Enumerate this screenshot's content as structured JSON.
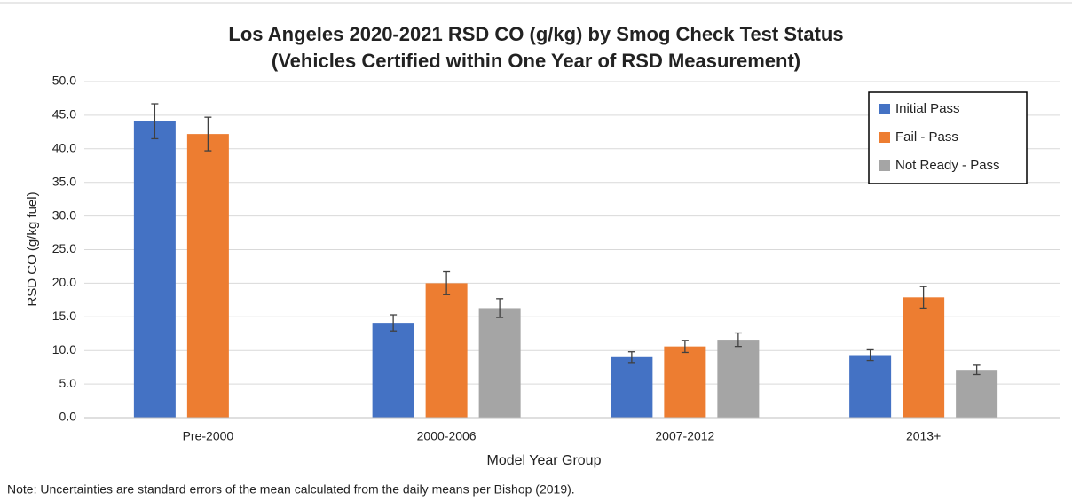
{
  "chart_data": {
    "type": "bar",
    "title": [
      "Los Angeles 2020-2021 RSD CO (g/kg) by Smog Check Test Status",
      "(Vehicles Certified within One Year of RSD Measurement)"
    ],
    "y_label": "RSD CO (g/kg fuel)",
    "x_label": "Model Year Group",
    "note": "Note: Uncertainties are standard errors of the mean calculated from the daily means per Bishop (2019).",
    "categories": [
      "Pre-2000",
      "2000-2006",
      "2007-2012",
      "2013+"
    ],
    "series": [
      {
        "name": "Initial Pass",
        "color": "#4472c4",
        "values": [
          44.1,
          14.1,
          9.0,
          9.3
        ],
        "errors": [
          2.6,
          1.2,
          0.8,
          0.8
        ]
      },
      {
        "name": "Fail - Pass",
        "color": "#ed7d31",
        "values": [
          42.2,
          20.0,
          10.6,
          17.9
        ],
        "errors": [
          2.5,
          1.7,
          0.9,
          1.6
        ]
      },
      {
        "name": "Not Ready - Pass",
        "color": "#a5a5a5",
        "values": [
          null,
          16.3,
          11.6,
          7.1
        ],
        "errors": [
          null,
          1.4,
          1.0,
          0.7
        ]
      }
    ],
    "ylim": [
      0,
      50
    ],
    "yticks": [
      {
        "value": 0,
        "label": "0.0"
      },
      {
        "value": 5,
        "label": "5.0"
      },
      {
        "value": 10,
        "label": "10.0"
      },
      {
        "value": 15,
        "label": "15.0"
      },
      {
        "value": 20,
        "label": "20.0"
      },
      {
        "value": 25,
        "label": "25.0"
      },
      {
        "value": 30,
        "label": "30.0"
      },
      {
        "value": 35,
        "label": "35.0"
      },
      {
        "value": 40,
        "label": "40.0"
      },
      {
        "value": 45,
        "label": "45.0"
      },
      {
        "value": 50,
        "label": "50.0"
      }
    ],
    "grid": true,
    "legend": "top-right"
  }
}
